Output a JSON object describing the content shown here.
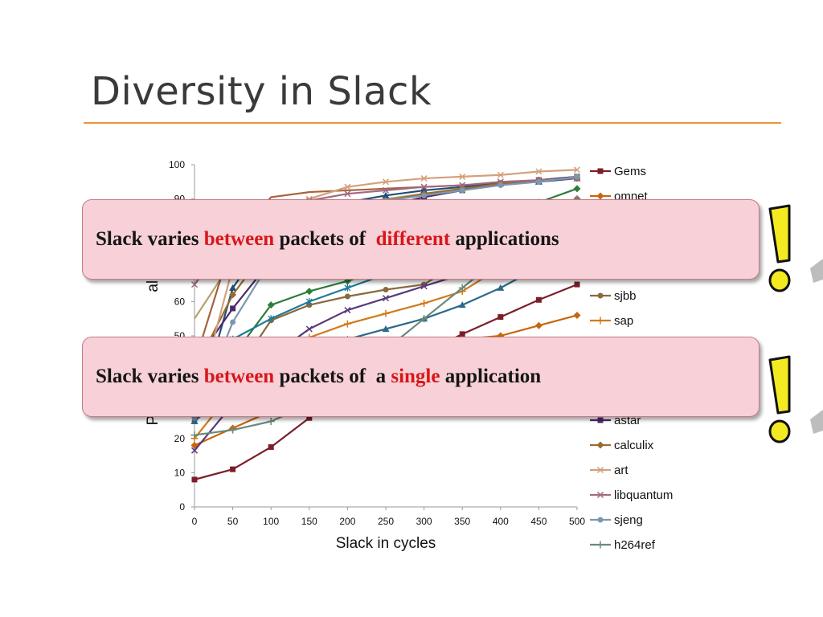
{
  "slide": {
    "title": "Diversity in Slack"
  },
  "callouts": [
    {
      "pre": "Slack varies ",
      "hl1": "between",
      "mid": " packets of ",
      "hl2": "",
      "mid2": "",
      "hl3": "different",
      "post": " applications"
    },
    {
      "pre": "Slack varies ",
      "hl1": "between",
      "mid": " packets of ",
      "hl2": "",
      "mid2": "a ",
      "hl3": "single",
      "post": " application"
    }
  ],
  "colors": {
    "accent_rule": "#e8973a",
    "callout_fill": "#f7d1d7",
    "highlight": "#d8161a",
    "exclaim_yellow": "#f4ea22"
  },
  "icons": [
    "exclamation-icon",
    "exclamation-icon"
  ],
  "chart_data": {
    "type": "line",
    "xlabel": "Slack in cycles",
    "ylabel": "Percentage of all Packets",
    "ylabel_visible": "Perc                        all Pac",
    "x": [
      0,
      50,
      100,
      150,
      200,
      250,
      300,
      350,
      400,
      450,
      500
    ],
    "xlim": [
      0,
      500
    ],
    "ylim": [
      0,
      100
    ],
    "yticks": [
      0,
      10,
      20,
      30,
      40,
      50,
      60,
      70,
      80,
      90,
      100
    ],
    "legend_position": "right",
    "grid": false,
    "series": [
      {
        "name": "Gems",
        "color": "#7b1e2b",
        "marker": "square",
        "values": [
          8,
          11,
          17.5,
          26,
          33,
          39,
          45,
          50.5,
          55.5,
          60.5,
          65
        ]
      },
      {
        "name": "omnet",
        "color": "#c8660c",
        "marker": "diamond",
        "values": [
          18,
          23,
          28,
          34,
          39,
          44,
          47,
          49,
          50,
          53,
          56
        ]
      },
      {
        "name": "",
        "color": "#b5a16b",
        "marker": "none",
        "values": [
          55,
          72,
          80,
          85,
          88,
          90,
          91.5,
          93,
          94,
          95.5,
          96.5
        ]
      },
      {
        "name": "",
        "color": "#a6623c",
        "marker": "none",
        "values": [
          42,
          78,
          90.5,
          92,
          92.5,
          93,
          93.5,
          94,
          94.5,
          95.5,
          96.5
        ]
      },
      {
        "name": "",
        "color": "#2e7d3b",
        "marker": "diamond",
        "values": [
          28,
          44,
          59,
          63,
          66,
          70,
          74,
          79,
          84,
          89,
          93
        ]
      },
      {
        "name": "sjbb",
        "color": "#8a6a3c",
        "marker": "circle",
        "values": [
          25,
          38,
          54.5,
          59,
          61.5,
          63.5,
          65,
          72,
          78,
          84,
          90
        ]
      },
      {
        "name": "sap",
        "color": "#d07a1a",
        "marker": "plus",
        "values": [
          20,
          34,
          45,
          49.5,
          53.5,
          56.5,
          59.5,
          63,
          70,
          76,
          82
        ]
      },
      {
        "name": "",
        "color": "#1f4e79",
        "marker": "triangle",
        "values": [
          25,
          64,
          80,
          86,
          89,
          91,
          92.5,
          93.5,
          94.5,
          95,
          96
        ]
      },
      {
        "name": "",
        "color": "#5a3a7a",
        "marker": "x",
        "values": [
          16.5,
          30,
          44,
          52,
          57.5,
          61,
          64.5,
          68,
          72,
          76.5,
          81
        ]
      },
      {
        "name": "",
        "color": "#1e7a9a",
        "marker": "star",
        "values": [
          41,
          49,
          55,
          60,
          64,
          68,
          72,
          76,
          80,
          84,
          88
        ]
      },
      {
        "name": "",
        "color": "#2a6a8a",
        "marker": "triangle",
        "values": [
          25,
          35,
          42,
          46,
          49,
          52,
          55,
          59,
          64,
          70,
          76
        ]
      },
      {
        "name": "astar",
        "color": "#4b2a6b",
        "marker": "square",
        "values": [
          42,
          58,
          72,
          80,
          85,
          88,
          90.5,
          92.5,
          94.5,
          95.5,
          96.5
        ]
      },
      {
        "name": "calculix",
        "color": "#9a6a30",
        "marker": "diamond",
        "values": [
          40,
          62,
          77,
          83,
          87,
          89.5,
          91.5,
          93,
          94.5,
          95.5,
          96
        ]
      },
      {
        "name": "art",
        "color": "#d4a07a",
        "marker": "x",
        "values": [
          28,
          70,
          82,
          90,
          93.5,
          95,
          96,
          96.5,
          97,
          98,
          98.5
        ]
      },
      {
        "name": "libquantum",
        "color": "#a06a80",
        "marker": "x",
        "values": [
          65,
          80,
          87,
          89.5,
          91.5,
          92.5,
          93.5,
          94,
          95,
          95.5,
          96
        ]
      },
      {
        "name": "sjeng",
        "color": "#7a98b0",
        "marker": "circle",
        "values": [
          26,
          54,
          72,
          82,
          87,
          89.5,
          91,
          92.5,
          94,
          95,
          96.5
        ]
      },
      {
        "name": "h264ref",
        "color": "#6a8a7a",
        "marker": "plus",
        "values": [
          21,
          22.5,
          25,
          30,
          38,
          46,
          55,
          64,
          73,
          82,
          90
        ]
      }
    ]
  }
}
